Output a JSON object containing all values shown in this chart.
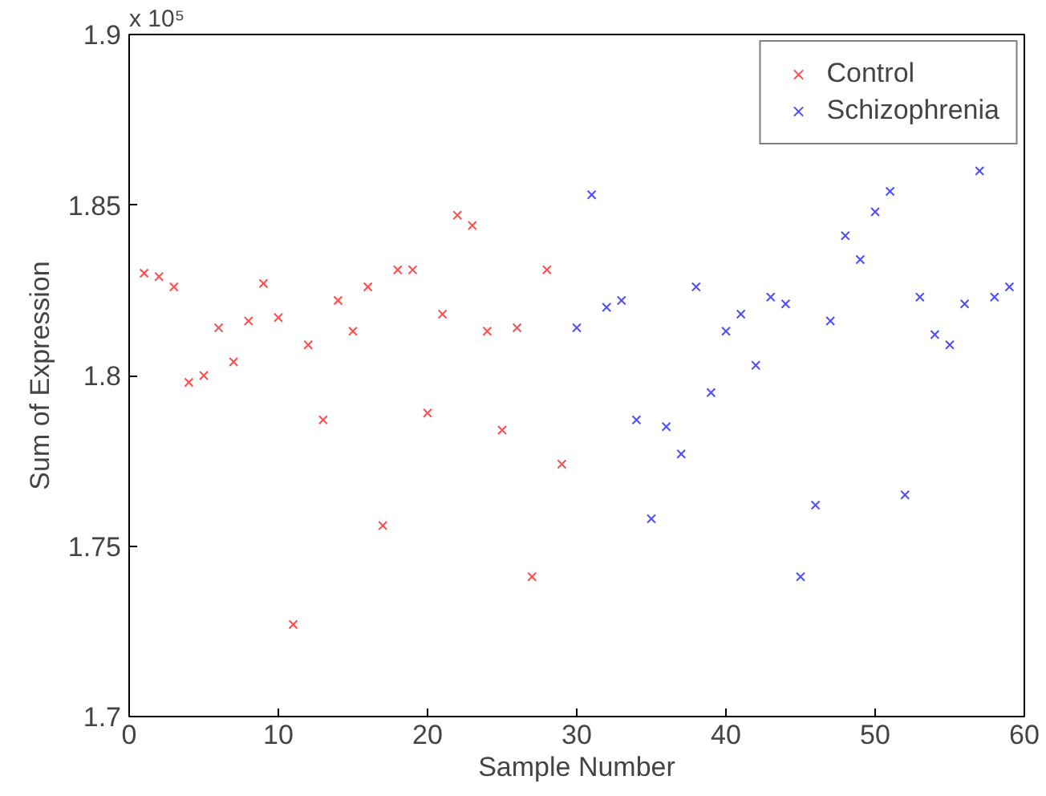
{
  "chart_data": {
    "type": "scatter",
    "xlabel": "Sample Number",
    "ylabel": "Sum of Expression",
    "annotations": [
      "x 10⁵"
    ],
    "series": [
      {
        "name": "Control",
        "color": "#ff4d4d",
        "x": [
          1,
          2,
          3,
          4,
          5,
          6,
          7,
          8,
          9,
          10,
          11,
          12,
          13,
          14,
          15,
          16,
          17,
          18,
          19,
          20,
          21,
          22,
          23,
          24,
          25,
          26,
          27,
          28,
          29
        ],
        "values": [
          1.83,
          1.829,
          1.826,
          1.798,
          1.8,
          1.814,
          1.804,
          1.816,
          1.827,
          1.817,
          1.727,
          1.809,
          1.787,
          1.822,
          1.813,
          1.826,
          1.756,
          1.831,
          1.831,
          1.789,
          1.818,
          1.847,
          1.844,
          1.813,
          1.784,
          1.814,
          1.741,
          1.831,
          1.774
        ]
      },
      {
        "name": "Schizophrenia",
        "color": "#4d4dff",
        "x": [
          30,
          31,
          32,
          33,
          34,
          35,
          36,
          37,
          38,
          39,
          40,
          41,
          42,
          43,
          44,
          45,
          46,
          47,
          48,
          49,
          50,
          51,
          52,
          53,
          54,
          55,
          56,
          57,
          58,
          59
        ],
        "values": [
          1.814,
          1.853,
          1.82,
          1.822,
          1.787,
          1.758,
          1.785,
          1.777,
          1.826,
          1.795,
          1.813,
          1.818,
          1.803,
          1.823,
          1.821,
          1.741,
          1.762,
          1.816,
          1.841,
          1.834,
          1.848,
          1.854,
          1.765,
          1.823,
          1.812,
          1.809,
          1.821,
          1.86,
          1.823,
          1.826
        ]
      }
    ],
    "xlim": [
      0,
      60
    ],
    "xticks": [
      0,
      10,
      20,
      30,
      40,
      50,
      60
    ],
    "ylim": [
      1.7,
      1.9
    ],
    "yticks": [
      1.7,
      1.75,
      1.8,
      1.85,
      1.9
    ],
    "grid": false,
    "legend": "top right",
    "marker": "cross"
  }
}
